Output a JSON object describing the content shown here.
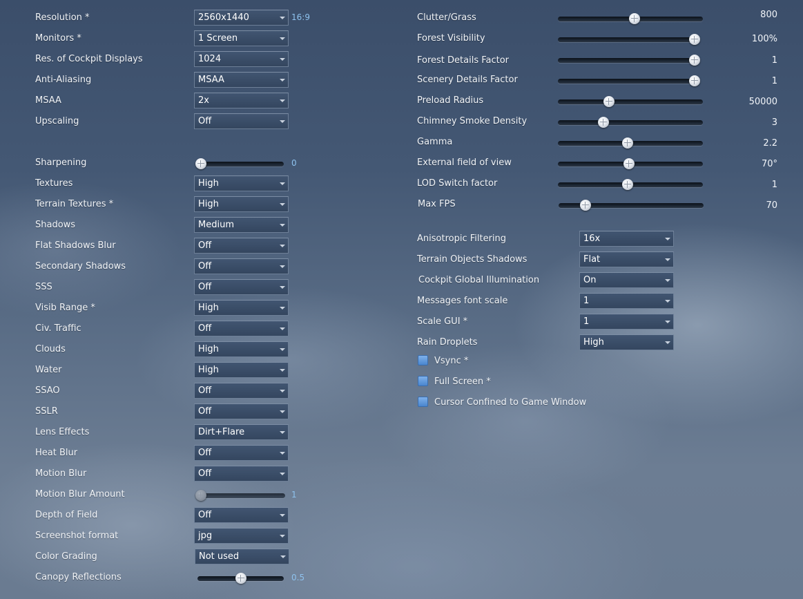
{
  "left": {
    "resolution": {
      "label": "Resolution *",
      "value": "2560x1440",
      "aspect": "16:9"
    },
    "monitors": {
      "label": "Monitors *",
      "value": "1 Screen"
    },
    "cockpit_displays": {
      "label": "Res. of Cockpit Displays",
      "value": "1024"
    },
    "anti_aliasing": {
      "label": "Anti-Aliasing",
      "value": "MSAA"
    },
    "msaa": {
      "label": "MSAA",
      "value": "2x"
    },
    "upscaling": {
      "label": "Upscaling",
      "value": "Off"
    },
    "sharpening": {
      "label": "Sharpening",
      "value": "0",
      "level": 0
    },
    "textures": {
      "label": "Textures",
      "value": "High"
    },
    "terrain_textures": {
      "label": "Terrain Textures *",
      "value": "High"
    },
    "shadows": {
      "label": "Shadows",
      "value": "Medium"
    },
    "flat_shadows_blur": {
      "label": "Flat Shadows Blur",
      "value": "Off"
    },
    "secondary_shadows": {
      "label": "Secondary Shadows",
      "value": "Off"
    },
    "sss": {
      "label": "SSS",
      "value": "Off"
    },
    "visib_range": {
      "label": "Visib Range *",
      "value": "High"
    },
    "civ_traffic": {
      "label": "Civ. Traffic",
      "value": "Off"
    },
    "clouds": {
      "label": "Clouds",
      "value": "High"
    },
    "water": {
      "label": "Water",
      "value": "High"
    },
    "ssao": {
      "label": "SSAO",
      "value": "Off"
    },
    "sslr": {
      "label": "SSLR",
      "value": "Off"
    },
    "lens_effects": {
      "label": "Lens Effects",
      "value": "Dirt+Flare"
    },
    "heat_blur": {
      "label": "Heat Blur",
      "value": "Off"
    },
    "motion_blur": {
      "label": "Motion Blur",
      "value": "Off"
    },
    "motion_blur_amount": {
      "label": "Motion Blur Amount",
      "value": "1",
      "level": 0
    },
    "depth_of_field": {
      "label": "Depth of Field",
      "value": "Off"
    },
    "screenshot_format": {
      "label": "Screenshot format",
      "value": "jpg"
    },
    "color_grading": {
      "label": "Color Grading",
      "value": "Not used"
    },
    "canopy_reflections": {
      "label": "Canopy Reflections",
      "value": "0.5",
      "level": 0.5
    }
  },
  "right": {
    "clutter_grass": {
      "label": "Clutter/Grass",
      "value": "800",
      "level": 0.53
    },
    "forest_visibility": {
      "label": "Forest Visibility",
      "value": "100%",
      "level": 1.0
    },
    "forest_details": {
      "label": "Forest Details Factor",
      "value": "1",
      "level": 1.0
    },
    "scenery_details": {
      "label": "Scenery Details Factor",
      "value": "1",
      "level": 1.0
    },
    "preload_radius": {
      "label": "Preload Radius",
      "value": "50000",
      "level": 0.34
    },
    "chimney_smoke": {
      "label": "Chimney Smoke Density",
      "value": "3",
      "level": 0.3
    },
    "gamma": {
      "label": "Gamma",
      "value": "2.2",
      "level": 0.48
    },
    "external_fov": {
      "label": "External field of view",
      "value": "70°",
      "level": 0.49
    },
    "lod_switch": {
      "label": "LOD Switch factor",
      "value": "1",
      "level": 0.48
    },
    "max_fps": {
      "label": "Max FPS",
      "value": "70",
      "level": 0.16
    },
    "anisotropic": {
      "label": "Anisotropic Filtering",
      "value": "16x"
    },
    "terrain_objects_shadows": {
      "label": "Terrain Objects Shadows",
      "value": "Flat"
    },
    "cockpit_gi": {
      "label": "Cockpit Global Illumination",
      "value": "On"
    },
    "messages_font_scale": {
      "label": "Messages font scale",
      "value": "1"
    },
    "scale_gui": {
      "label": "Scale GUI *",
      "value": "1"
    },
    "rain_droplets": {
      "label": "Rain Droplets",
      "value": "High"
    },
    "vsync": {
      "label": "Vsync *"
    },
    "full_screen": {
      "label": "Full Screen *"
    },
    "cursor_confined": {
      "label": "Cursor Confined to Game Window"
    }
  },
  "colors": {
    "accent_value": "#8ec2ee",
    "checkbox": "#5b93d8",
    "panel": "#3a4d68"
  },
  "icons": {
    "dropdown_arrow": "chevron-down-icon",
    "slider_thumb": "slider-knob-icon"
  }
}
